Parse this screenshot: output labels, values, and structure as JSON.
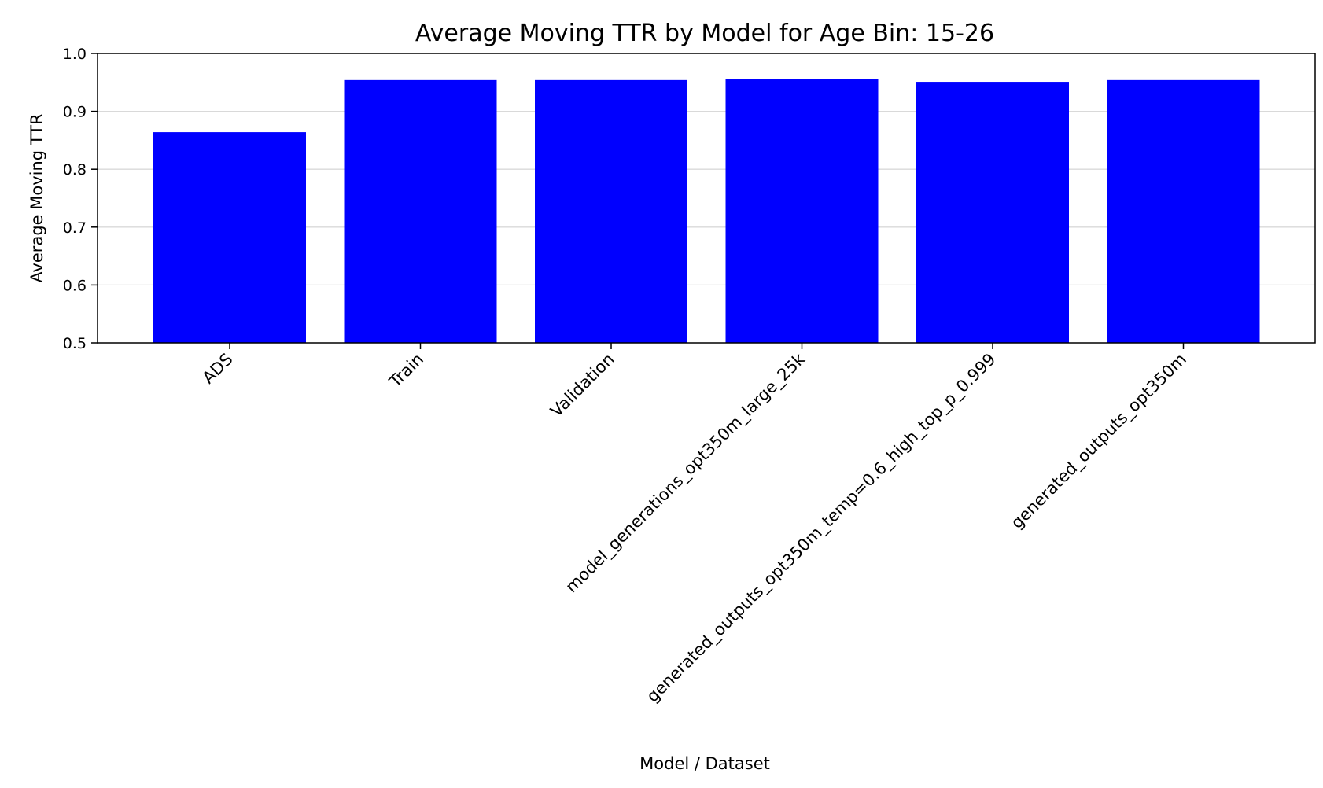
{
  "chart_data": {
    "type": "bar",
    "title": "Average Moving TTR by Model for Age Bin: 15-26",
    "xlabel": "Model / Dataset",
    "ylabel": "Average Moving TTR",
    "categories": [
      "ADS",
      "Train",
      "Validation",
      "model_generations_opt350m_large_25k",
      "generated_outputs_opt350m_temp=0.6_high_top_p_0.999",
      "generated_outputs_opt350m"
    ],
    "values": [
      0.864,
      0.954,
      0.954,
      0.956,
      0.951,
      0.954
    ],
    "ylim": [
      0.5,
      1.0
    ],
    "yticks": [
      "0.5",
      "0.6",
      "0.7",
      "0.8",
      "0.9",
      "1.0"
    ],
    "grid": "horizontal",
    "bar_color": "#0000ff"
  }
}
